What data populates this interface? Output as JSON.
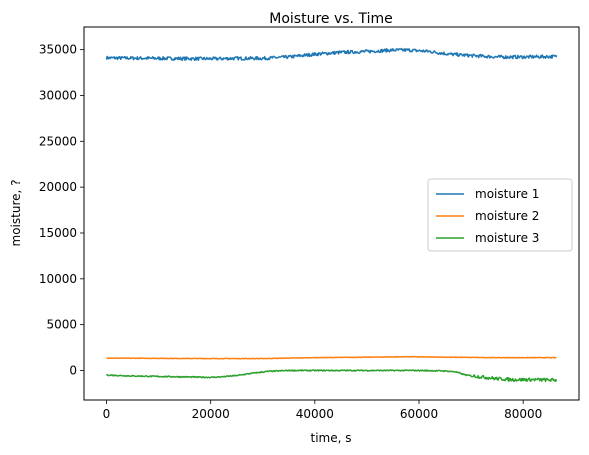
{
  "chart_data": {
    "type": "line",
    "title": "Moisture vs. Time",
    "xlabel": "time, s",
    "ylabel": "moisture, ?",
    "xlim": [
      -4320,
      90720
    ],
    "ylim": [
      -3220,
      37470
    ],
    "xticks": [
      0,
      20000,
      40000,
      60000,
      80000
    ],
    "yticks": [
      0,
      5000,
      10000,
      15000,
      20000,
      25000,
      30000,
      35000
    ],
    "grid": false,
    "legend_position": "center-right",
    "series": [
      {
        "name": "moisture 1",
        "color": "#1f77b4",
        "noise": 180,
        "x": [
          0,
          10000,
          20000,
          25000,
          30000,
          35000,
          40000,
          45000,
          50000,
          55000,
          58000,
          62000,
          66000,
          70000,
          75000,
          80000,
          86400
        ],
        "y": [
          34100,
          34050,
          34000,
          34050,
          34050,
          34200,
          34500,
          34700,
          34800,
          34950,
          34950,
          34800,
          34500,
          34350,
          34200,
          34200,
          34250
        ]
      },
      {
        "name": "moisture 2",
        "color": "#ff7f0e",
        "noise": 25,
        "x": [
          0,
          20000,
          30000,
          40000,
          50000,
          58000,
          65000,
          75000,
          86400
        ],
        "y": [
          1350,
          1300,
          1300,
          1400,
          1450,
          1500,
          1450,
          1400,
          1400
        ]
      },
      {
        "name": "moisture 3",
        "color": "#2ca02c",
        "noise": 60,
        "noise_tail": 180,
        "x": [
          0,
          5000,
          10000,
          15000,
          20000,
          22000,
          25000,
          28000,
          31000,
          35000,
          40000,
          50000,
          60000,
          65000,
          67000,
          69000,
          72000,
          75000,
          78000,
          82000,
          86400
        ],
        "y": [
          -500,
          -600,
          -650,
          -700,
          -750,
          -700,
          -550,
          -300,
          -100,
          0,
          0,
          0,
          0,
          -50,
          -150,
          -500,
          -700,
          -900,
          -1000,
          -1000,
          -1050
        ]
      }
    ]
  }
}
